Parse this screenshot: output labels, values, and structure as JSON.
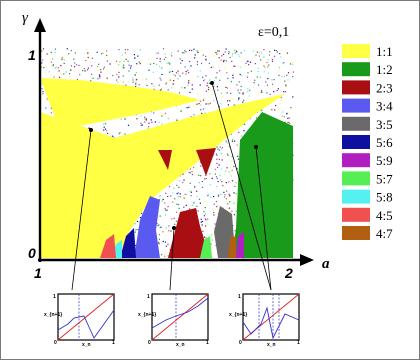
{
  "chart_data": {
    "type": "heatmap",
    "title": "",
    "parameter_label": "ε=0,1",
    "xlabel": "a",
    "ylabel": "γ",
    "xlim": [
      1,
      2
    ],
    "ylim": [
      0,
      1
    ],
    "x_ticks": [
      "1",
      "2"
    ],
    "y_ticks": [
      "0",
      "1"
    ],
    "legend": [
      {
        "label": "1:1",
        "color": "#ffff44"
      },
      {
        "label": "1:2",
        "color": "#1a9a1a"
      },
      {
        "label": "2:3",
        "color": "#a80e12"
      },
      {
        "label": "3:4",
        "color": "#5a5af0"
      },
      {
        "label": "3:5",
        "color": "#6a6a6a"
      },
      {
        "label": "5:6",
        "color": "#1010a0"
      },
      {
        "label": "5:9",
        "color": "#b020c0"
      },
      {
        "label": "5:7",
        "color": "#55ee55"
      },
      {
        "label": "5:8",
        "color": "#55f0f0"
      },
      {
        "label": "4:5",
        "color": "#f05050"
      },
      {
        "label": "4:7",
        "color": "#b06010"
      }
    ],
    "insets": [
      {
        "xlabel": "x_n",
        "ylabel": "x_{n+1}",
        "x_ticks": [
          "0",
          "1"
        ],
        "y_ticks": [
          "1"
        ]
      },
      {
        "xlabel": "x_n",
        "ylabel": "x_{n+1}",
        "x_ticks": [
          "0",
          "1"
        ],
        "y_ticks": [
          "1"
        ]
      },
      {
        "xlabel": "x_n",
        "ylabel": "x_{n+1}",
        "x_ticks": [
          "0",
          "1"
        ],
        "y_ticks": [
          "1"
        ]
      }
    ]
  }
}
